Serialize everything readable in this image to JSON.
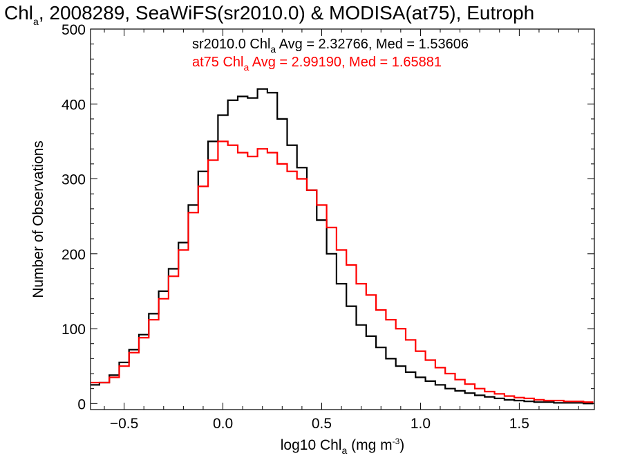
{
  "chart_data": {
    "type": "line",
    "title": "Chl, 2008289, SeaWiFS(sr2010.0) & MODISA(at75), Eutroph",
    "title_parts": {
      "a": "Chl",
      "b": "a",
      "c": ", 2008289, SeaWiFS(sr2010.0) & MODISA(at75), Eutroph"
    },
    "xlabel_parts": {
      "a": "log10 Chl",
      "b": "a",
      "c": " (mg m",
      "d": "-3",
      "e": ")"
    },
    "ylabel": "Number of Observations",
    "xlim": [
      -0.67,
      1.88
    ],
    "ylim": [
      -8,
      500
    ],
    "xticks": [
      -0.5,
      0.0,
      0.5,
      1.0,
      1.5
    ],
    "xtick_labels": [
      "−0.5",
      "0.0",
      "0.5",
      "1.0",
      "1.5"
    ],
    "yticks": [
      0,
      100,
      200,
      300,
      400,
      500
    ],
    "ytick_labels": [
      "0",
      "100",
      "200",
      "300",
      "400",
      "500"
    ],
    "stats": [
      {
        "pre": "sr2010.0 Chl",
        "sub": "a",
        "post": " Avg = 2.32766, Med = 1.53606",
        "color": "#000000"
      },
      {
        "pre": "at75 Chl",
        "sub": "a",
        "post": " Avg = 2.99190, Med = 1.65881",
        "color": "#ff0000"
      }
    ],
    "series": [
      {
        "color": "#000000",
        "x": [
          -0.65,
          -0.6,
          -0.55,
          -0.5,
          -0.45,
          -0.4,
          -0.35,
          -0.3,
          -0.25,
          -0.2,
          -0.15,
          -0.1,
          -0.05,
          0.0,
          0.05,
          0.1,
          0.15,
          0.2,
          0.25,
          0.3,
          0.35,
          0.4,
          0.45,
          0.5,
          0.55,
          0.6,
          0.65,
          0.7,
          0.75,
          0.8,
          0.85,
          0.9,
          0.95,
          1.0,
          1.05,
          1.1,
          1.15,
          1.2,
          1.25,
          1.3,
          1.35,
          1.4,
          1.45,
          1.5,
          1.55,
          1.6,
          1.65,
          1.7,
          1.75,
          1.8,
          1.85
        ],
        "y": [
          25,
          28,
          38,
          55,
          72,
          92,
          120,
          150,
          180,
          215,
          265,
          310,
          350,
          385,
          405,
          410,
          408,
          420,
          415,
          380,
          345,
          315,
          285,
          245,
          200,
          160,
          130,
          105,
          90,
          75,
          60,
          50,
          42,
          35,
          30,
          25,
          20,
          17,
          14,
          11,
          9,
          7,
          5,
          4,
          3,
          2,
          2,
          1,
          1,
          1,
          0
        ]
      },
      {
        "color": "#ff0000",
        "x": [
          -0.65,
          -0.6,
          -0.55,
          -0.5,
          -0.45,
          -0.4,
          -0.35,
          -0.3,
          -0.25,
          -0.2,
          -0.15,
          -0.1,
          -0.05,
          0.0,
          0.05,
          0.1,
          0.15,
          0.2,
          0.25,
          0.3,
          0.35,
          0.4,
          0.45,
          0.5,
          0.55,
          0.6,
          0.65,
          0.7,
          0.75,
          0.8,
          0.85,
          0.9,
          0.95,
          1.0,
          1.05,
          1.1,
          1.15,
          1.2,
          1.25,
          1.3,
          1.35,
          1.4,
          1.45,
          1.5,
          1.55,
          1.6,
          1.65,
          1.7,
          1.75,
          1.8,
          1.85
        ],
        "y": [
          28,
          28,
          35,
          50,
          68,
          88,
          112,
          140,
          170,
          205,
          255,
          290,
          325,
          350,
          345,
          335,
          330,
          340,
          335,
          320,
          310,
          300,
          285,
          265,
          235,
          205,
          185,
          160,
          145,
          125,
          112,
          100,
          85,
          70,
          58,
          48,
          40,
          32,
          26,
          20,
          16,
          13,
          10,
          8,
          7,
          5,
          4,
          4,
          3,
          3,
          2
        ]
      }
    ]
  }
}
